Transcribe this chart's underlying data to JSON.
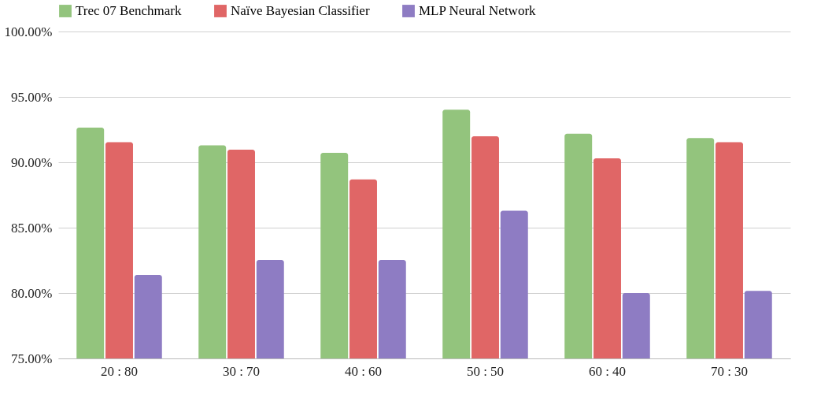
{
  "chart_data": {
    "type": "bar",
    "categories": [
      "20 : 80",
      "30 : 70",
      "40 : 60",
      "50 : 50",
      "60 : 40",
      "70 : 30"
    ],
    "series": [
      {
        "name": "Trec 07 Benchmark",
        "color": "#93c47d",
        "values": [
          92.65,
          91.29,
          90.72,
          94.02,
          92.19,
          91.85
        ]
      },
      {
        "name": "Naïve Bayesian Classifier",
        "color": "#e06666",
        "values": [
          91.53,
          90.96,
          88.69,
          91.99,
          90.3,
          91.53
        ]
      },
      {
        "name": "MLP Neural Network",
        "color": "#8e7cc3",
        "values": [
          81.39,
          82.53,
          82.53,
          86.29,
          80.0,
          80.16
        ]
      }
    ],
    "ylim": [
      75,
      100
    ],
    "yticks": [
      {
        "value": 75,
        "label": "75.00%"
      },
      {
        "value": 80,
        "label": "80.00%"
      },
      {
        "value": 85,
        "label": "85.00%"
      },
      {
        "value": 90,
        "label": "90.00%"
      },
      {
        "value": 95,
        "label": "95.00%"
      },
      {
        "value": 100,
        "label": "100.00%"
      }
    ],
    "grid": "y",
    "legend": "top"
  }
}
